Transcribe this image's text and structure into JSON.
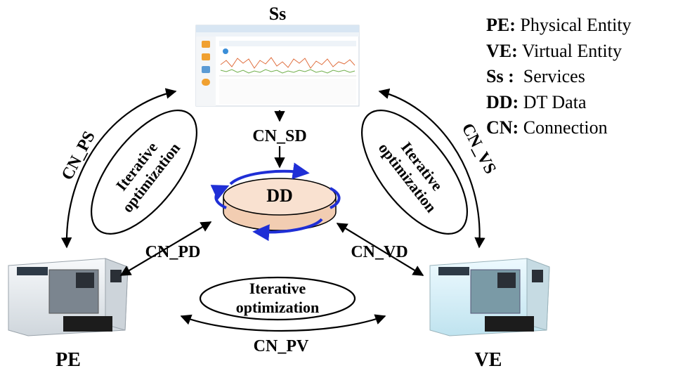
{
  "nodes": {
    "ss": "Ss",
    "dd": "DD",
    "pe": "PE",
    "ve": "VE"
  },
  "connections": {
    "ps": "CN_PS",
    "vs": "CN_VS",
    "sd": "CN_SD",
    "pd": "CN_PD",
    "vd": "CN_VD",
    "pv": "CN_PV"
  },
  "loops": {
    "left": [
      "Iterative",
      "optimization"
    ],
    "right": [
      "Iterative",
      "optimization"
    ],
    "bottom": [
      "Iterative",
      "optimization"
    ]
  },
  "legend": [
    {
      "abbr": "PE:",
      "desc": "Physical Entity"
    },
    {
      "abbr": "VE:",
      "desc": "Virtual Entity"
    },
    {
      "abbr": "Ss :",
      "desc": "Services"
    },
    {
      "abbr": "DD:",
      "desc": "DT Data"
    },
    {
      "abbr": "CN:",
      "desc": "Connection"
    }
  ],
  "colors": {
    "disk_fill": "#f6dcc8",
    "disk_arrows": "#1f2fd6",
    "machine_body": "#e9eef2",
    "machine_body_virtual": "#d6f0f8"
  }
}
